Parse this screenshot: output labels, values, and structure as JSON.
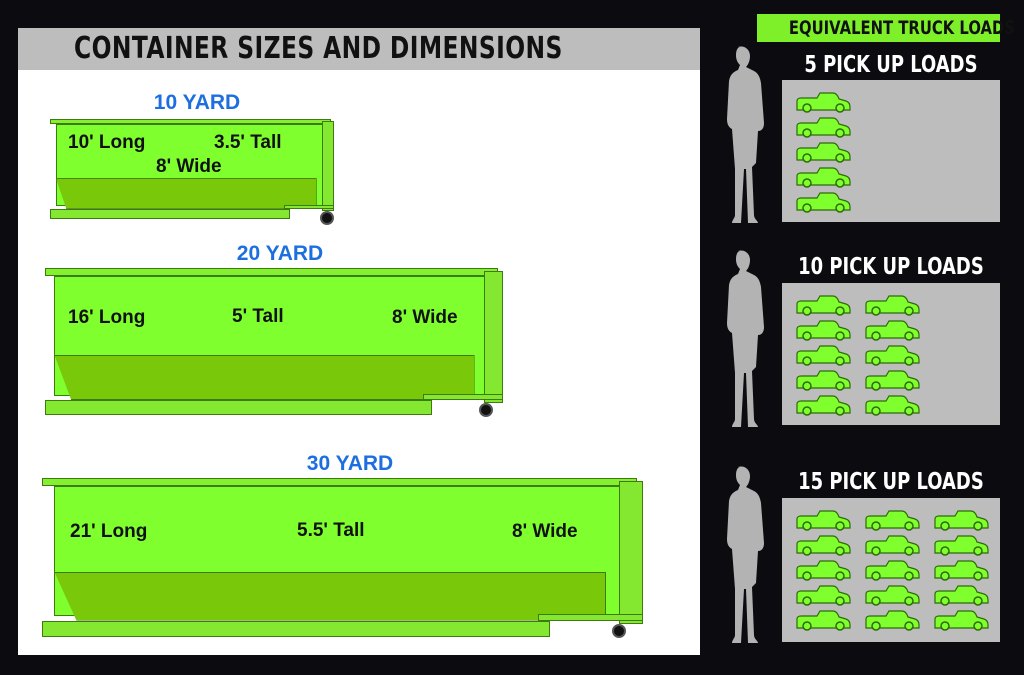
{
  "title": "CONTAINER SIZES AND DIMENSIONS",
  "containers": [
    {
      "size": "10 YARD",
      "long": "10' Long",
      "tall": "3.5' Tall",
      "wide": "8' Wide"
    },
    {
      "size": "20 YARD",
      "long": "16' Long",
      "tall": "5' Tall",
      "wide": "8' Wide"
    },
    {
      "size": "30 YARD",
      "long": "21' Long",
      "tall": "5.5' Tall",
      "wide": "8' Wide"
    }
  ],
  "equivalent": {
    "heading": "EQUIVALENT TRUCK LOADS",
    "loads": [
      {
        "label": "5 PICK UP LOADS",
        "count": 5
      },
      {
        "label": "10 PICK UP LOADS",
        "count": 10
      },
      {
        "label": "15 PICK UP LOADS",
        "count": 15
      }
    ]
  },
  "colors": {
    "accent_green": "#7fff2e",
    "size_blue": "#1d6fe0",
    "background": "#0c0c10",
    "panel_gray": "#bdbdbd"
  },
  "icons": {
    "truck": "pickup-truck-icon",
    "person": "person-silhouette-icon"
  }
}
